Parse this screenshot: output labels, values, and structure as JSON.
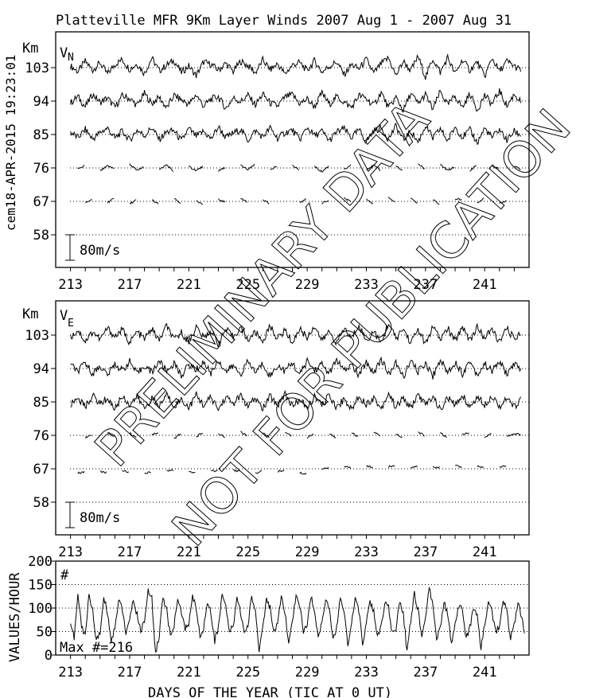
{
  "title": "Platteville MFR 9Km Layer Winds 2007 Aug  1 - 2007 Aug 31",
  "side_stamp": "cem18-APR-2015 19:23:01",
  "watermark": [
    "PRELIMINARY DATA",
    "NOT FOR PUBLICATION"
  ],
  "colors": {
    "line": "#000000",
    "background": "#ffffff"
  },
  "chart_data": [
    {
      "type": "line",
      "panel_label": "V",
      "panel_subscript": "N",
      "ylabel": "Km",
      "xlim": [
        212,
        244
      ],
      "x_ticks": [
        "213",
        "217",
        "221",
        "225",
        "229",
        "233",
        "237",
        "241"
      ],
      "y_ticks": [
        "103",
        "94",
        "85",
        "76",
        "67",
        "58"
      ],
      "grid": "dotted at each altitude",
      "scale_bar": "80m/s",
      "x_start_day": 213,
      "x_step_days": 0.5,
      "series": [
        {
          "altitude_km": 103,
          "values": [
            5,
            -12,
            20,
            -8,
            15,
            -20,
            10,
            25,
            -5,
            12,
            -18,
            30,
            -10,
            8,
            22,
            -15,
            5,
            -25,
            18,
            10,
            -8,
            14,
            -12,
            20,
            6,
            -16,
            24,
            -6,
            12,
            -20,
            8,
            16,
            -10,
            22,
            -14,
            4,
            18,
            -22,
            10,
            -4,
            26,
            -18,
            12,
            30,
            -25,
            20,
            -10,
            35,
            -30,
            28,
            -15,
            32,
            -20,
            25,
            -8,
            18,
            -28,
            30,
            -12,
            20,
            5,
            -10
          ]
        },
        {
          "altitude_km": 94,
          "values": [
            -6,
            14,
            -18,
            22,
            -4,
            10,
            -20,
            16,
            8,
            -14,
            24,
            -8,
            12,
            -22,
            18,
            4,
            -10,
            20,
            -16,
            6,
            14,
            -24,
            10,
            -2,
            18,
            -12,
            22,
            -6,
            -16,
            12,
            20,
            -8,
            6,
            -18,
            26,
            -10,
            14,
            -4,
            -20,
            18,
            8,
            -14,
            28,
            -22,
            12,
            -30,
            24,
            -8,
            20,
            -26,
            30,
            -12,
            16,
            -20,
            24,
            -28,
            18,
            -10,
            32,
            -16,
            22,
            -6
          ]
        },
        {
          "altitude_km": 85,
          "values": [
            8,
            -10,
            16,
            -14,
            6,
            20,
            -12,
            10,
            -18,
            14,
            -4,
            22,
            -16,
            8,
            12,
            -20,
            18,
            -6,
            10,
            -14,
            24,
            -10,
            4,
            16,
            -18,
            12,
            -8,
            20,
            -12,
            6,
            14,
            -16,
            22,
            -4,
            10,
            -20,
            8,
            18,
            -10,
            14,
            -22,
            12,
            20,
            -14,
            26,
            -18,
            10,
            -24,
            28,
            -12,
            18,
            -20,
            24,
            -8,
            14,
            -26,
            20,
            -10,
            16,
            -18,
            10,
            -4
          ]
        },
        {
          "altitude_km": 76,
          "values": [
            null,
            -4,
            8,
            null,
            -10,
            6,
            -2,
            null,
            12,
            -8,
            4,
            null,
            -6,
            10,
            -12,
            null,
            4,
            -8,
            6,
            null,
            -10,
            2,
            null,
            8,
            -6,
            12,
            null,
            -4,
            6,
            null,
            10,
            -8,
            null,
            4,
            -12,
            8,
            null,
            -6,
            10,
            null,
            -4,
            8,
            -10,
            null,
            6,
            -12,
            null,
            14,
            -6,
            null,
            10,
            -8,
            4,
            null,
            -10,
            12,
            null,
            6,
            -4,
            null,
            8,
            -6
          ]
        },
        {
          "altitude_km": 67,
          "values": [
            null,
            null,
            -6,
            8,
            null,
            -4,
            10,
            null,
            -8,
            6,
            null,
            4,
            -10,
            null,
            8,
            -6,
            null,
            2,
            -8,
            null,
            6,
            -4,
            null,
            10,
            -6,
            null,
            4,
            -8,
            null,
            6,
            null,
            -4,
            8,
            null,
            -6,
            4,
            null,
            10,
            -2,
            null,
            6,
            -8,
            null,
            12,
            -4,
            null,
            8,
            -6,
            null,
            4,
            -10,
            null,
            6,
            8,
            null,
            -4,
            10,
            null,
            -6,
            4,
            null,
            2
          ]
        }
      ]
    },
    {
      "type": "line",
      "panel_label": "V",
      "panel_subscript": "E",
      "ylabel": "Km",
      "xlim": [
        212,
        244
      ],
      "x_ticks": [
        "213",
        "217",
        "221",
        "225",
        "229",
        "233",
        "237",
        "241"
      ],
      "y_ticks": [
        "103",
        "94",
        "85",
        "76",
        "67",
        "58"
      ],
      "grid": "dotted at each altitude",
      "scale_bar": "80m/s",
      "x_start_day": 213,
      "x_step_days": 0.5,
      "series": [
        {
          "altitude_km": 103,
          "values": [
            -8,
            16,
            -20,
            12,
            -14,
            22,
            -6,
            18,
            -24,
            10,
            -12,
            20,
            -18,
            30,
            -16,
            8,
            -22,
            26,
            -10,
            14,
            -28,
            18,
            -6,
            24,
            -16,
            10,
            -20,
            28,
            -12,
            16,
            -24,
            20,
            -8,
            30,
            -18,
            12,
            -26,
            22,
            -10,
            34,
            -20,
            14,
            -28,
            40,
            -12,
            20,
            -24,
            18,
            -30,
            26,
            -14,
            22,
            -20,
            28,
            -16,
            24,
            -10,
            18,
            -22,
            20,
            -12,
            14
          ]
        },
        {
          "altitude_km": 94,
          "values": [
            12,
            -10,
            18,
            -16,
            8,
            -20,
            14,
            -6,
            22,
            -18,
            10,
            -12,
            24,
            -8,
            16,
            -22,
            12,
            -4,
            20,
            -14,
            26,
            -10,
            8,
            -18,
            22,
            -12,
            16,
            -24,
            10,
            -8,
            18,
            -20,
            24,
            -6,
            14,
            -16,
            28,
            -10,
            12,
            -22,
            20,
            -14,
            30,
            -18,
            16,
            -26,
            22,
            -10,
            18,
            -24,
            28,
            -12,
            20,
            -16,
            24,
            -20,
            14,
            -8,
            22,
            -18,
            16,
            -10
          ]
        },
        {
          "altitude_km": 85,
          "values": [
            -10,
            14,
            -16,
            20,
            -6,
            12,
            -22,
            18,
            -8,
            16,
            -20,
            10,
            -14,
            24,
            -12,
            8,
            -18,
            22,
            -10,
            14,
            -24,
            16,
            -6,
            20,
            -16,
            12,
            -22,
            18,
            -10,
            26,
            -14,
            8,
            -20,
            16,
            -12,
            22,
            -18,
            10,
            -24,
            20,
            -8,
            14,
            -22,
            28,
            -16,
            12,
            -20,
            24,
            -10,
            18,
            -26,
            14,
            -12,
            22,
            -18,
            16,
            -8,
            20,
            -14,
            10,
            -16,
            12
          ]
        },
        {
          "altitude_km": 76,
          "values": [
            6,
            null,
            -8,
            4,
            null,
            10,
            -6,
            null,
            8,
            -10,
            null,
            4,
            6,
            null,
            -12,
            8,
            null,
            -4,
            10,
            null,
            6,
            -8,
            null,
            12,
            -4,
            null,
            8,
            -6,
            null,
            10,
            -2,
            null,
            -8,
            6,
            null,
            4,
            -10,
            null,
            8,
            -6,
            null,
            12,
            -4,
            null,
            6,
            -8,
            null,
            10,
            -2,
            null,
            8,
            -10,
            null,
            4,
            6,
            null,
            -8,
            10,
            null,
            -4,
            6,
            2
          ]
        },
        {
          "altitude_km": 67,
          "values": [
            null,
            -14,
            -10,
            null,
            -8,
            -12,
            null,
            -6,
            -10,
            null,
            -14,
            -8,
            null,
            -6,
            -4,
            null,
            -10,
            -12,
            null,
            -6,
            -8,
            null,
            -4,
            -10,
            null,
            -14,
            -6,
            null,
            -8,
            -4,
            null,
            -12,
            -16,
            null,
            -2,
            4,
            null,
            6,
            2,
            null,
            8,
            4,
            null,
            6,
            10,
            null,
            2,
            8,
            null,
            6,
            4,
            null,
            10,
            6,
            null,
            8,
            4,
            null,
            6,
            10,
            null,
            8
          ]
        }
      ]
    },
    {
      "type": "line",
      "panel_label": "#",
      "ylabel": "VALUES/HOUR",
      "xlabel": "DAYS OF THE YEAR (TIC AT 0 UT)",
      "annotation": "Max #=216",
      "xlim": [
        212,
        244
      ],
      "ylim": [
        0,
        200
      ],
      "x_ticks": [
        "213",
        "217",
        "221",
        "225",
        "229",
        "233",
        "237",
        "241"
      ],
      "y_ticks": [
        "0",
        "50",
        "100",
        "150",
        "200"
      ],
      "grid": "dotted at 50, 100, 150",
      "x_start_day": 213,
      "x_step_days": 0.25,
      "values": [
        72,
        35,
        130,
        60,
        40,
        130,
        95,
        30,
        45,
        125,
        90,
        30,
        60,
        115,
        100,
        45,
        70,
        120,
        85,
        50,
        75,
        135,
        120,
        5,
        40,
        125,
        95,
        40,
        60,
        125,
        90,
        55,
        65,
        125,
        100,
        40,
        55,
        115,
        90,
        30,
        60,
        130,
        100,
        50,
        60,
        125,
        90,
        45,
        65,
        125,
        95,
        10,
        60,
        120,
        100,
        45,
        65,
        120,
        90,
        25,
        70,
        130,
        105,
        50,
        60,
        125,
        95,
        40,
        70,
        120,
        95,
        30,
        60,
        125,
        90,
        25,
        65,
        120,
        95,
        20,
        70,
        115,
        90,
        40,
        60,
        110,
        100,
        45,
        55,
        115,
        90,
        5,
        75,
        130,
        95,
        40,
        80,
        140,
        110,
        35,
        60,
        110,
        90,
        25,
        70,
        105,
        95,
        35,
        60,
        100,
        80,
        15,
        65,
        110,
        90,
        50,
        60,
        120,
        90,
        35,
        65,
        115,
        80,
        40
      ]
    }
  ]
}
